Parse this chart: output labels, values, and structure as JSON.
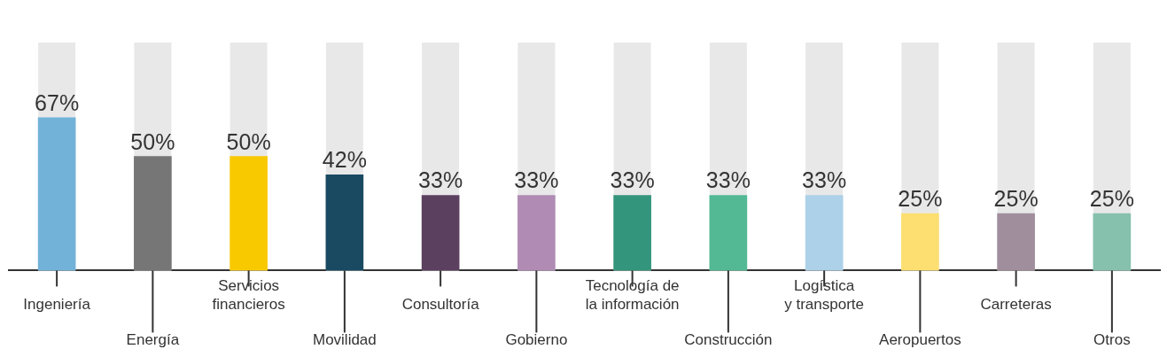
{
  "chart_data": {
    "type": "bar",
    "categories": [
      "Ingeniería",
      "Energía",
      "Servicios\nfinancieros",
      "Movilidad",
      "Consultoría",
      "Gobierno",
      "Tecnología de\nla información",
      "Construcción",
      "Logística\ny transporte",
      "Aeropuertos",
      "Carreteras",
      "Otros"
    ],
    "values": [
      67,
      50,
      50,
      42,
      33,
      33,
      33,
      33,
      33,
      25,
      25,
      25
    ],
    "value_labels": [
      "67%",
      "50%",
      "50%",
      "42%",
      "33%",
      "33%",
      "33%",
      "33%",
      "33%",
      "25%",
      "25%",
      "25%"
    ],
    "colors": [
      "#72b2d8",
      "#767676",
      "#f9c900",
      "#1a4a62",
      "#5c405f",
      "#b08bb4",
      "#33957b",
      "#53b994",
      "#acd1e8",
      "#fcdf70",
      "#a08e9d",
      "#86c1ae"
    ],
    "ylim": [
      0,
      100
    ],
    "tick_labels": "x",
    "grid": false,
    "legend": false
  }
}
